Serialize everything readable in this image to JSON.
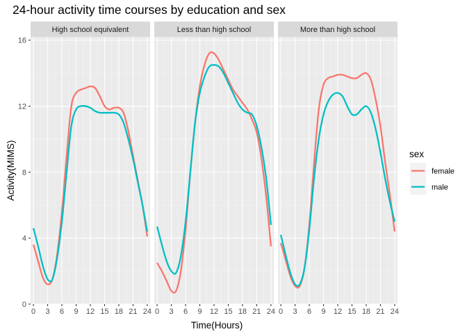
{
  "chart_data": {
    "type": "line",
    "title": "24-hour activity time courses by education and sex",
    "xlabel": "Time(Hours)",
    "ylabel": "Activity(MIMS)",
    "xlim": [
      -0.6,
      24.6
    ],
    "ylim": [
      0,
      16.2
    ],
    "x_ticks": [
      0,
      3,
      6,
      9,
      12,
      15,
      18,
      21,
      24
    ],
    "y_ticks": [
      0,
      4,
      8,
      12,
      16
    ],
    "grid": true,
    "legend": {
      "title": "sex",
      "position": "right"
    },
    "facets": [
      {
        "label": "High school equivalent",
        "series": [
          {
            "name": "female",
            "color": "#F8766D",
            "x": [
              0,
              1,
              2,
              3,
              4,
              5,
              6,
              7,
              8,
              9,
              10,
              11,
              12,
              13,
              14,
              15,
              16,
              17,
              18,
              19,
              20,
              21,
              22,
              23,
              24
            ],
            "y": [
              3.6,
              2.6,
              1.6,
              1.2,
              1.5,
              3.0,
              5.6,
              9.0,
              12.0,
              12.8,
              13.0,
              13.1,
              13.2,
              13.1,
              12.6,
              12.0,
              11.8,
              11.9,
              11.9,
              11.6,
              10.5,
              9.0,
              7.5,
              6.0,
              4.1
            ]
          },
          {
            "name": "male",
            "color": "#00BFC4",
            "x": [
              0,
              1,
              2,
              3,
              4,
              5,
              6,
              7,
              8,
              9,
              10,
              11,
              12,
              13,
              14,
              15,
              16,
              17,
              18,
              19,
              20,
              21,
              22,
              23,
              24
            ],
            "y": [
              4.6,
              3.5,
              2.3,
              1.5,
              1.5,
              2.8,
              5.0,
              8.0,
              10.8,
              11.8,
              12.0,
              12.0,
              11.9,
              11.7,
              11.6,
              11.6,
              11.6,
              11.6,
              11.5,
              11.0,
              10.0,
              8.8,
              7.4,
              6.0,
              4.4
            ]
          }
        ]
      },
      {
        "label": "Less than high school",
        "series": [
          {
            "name": "female",
            "color": "#F8766D",
            "x": [
              0,
              1,
              2,
              3,
              4,
              5,
              6,
              7,
              8,
              9,
              10,
              11,
              12,
              13,
              14,
              15,
              16,
              17,
              18,
              19,
              20,
              21,
              22,
              23,
              24
            ],
            "y": [
              2.5,
              2.0,
              1.4,
              0.8,
              0.8,
              2.0,
              4.5,
              8.0,
              11.0,
              13.2,
              14.5,
              15.2,
              15.2,
              14.8,
              14.2,
              13.6,
              13.0,
              12.6,
              12.2,
              11.8,
              11.2,
              10.4,
              8.8,
              6.5,
              3.5
            ]
          },
          {
            "name": "male",
            "color": "#00BFC4",
            "x": [
              0,
              1,
              2,
              3,
              4,
              5,
              6,
              7,
              8,
              9,
              10,
              11,
              12,
              13,
              14,
              15,
              16,
              17,
              18,
              19,
              20,
              21,
              22,
              23,
              24
            ],
            "y": [
              4.7,
              3.6,
              2.6,
              2.0,
              1.9,
              2.9,
              5.0,
              8.0,
              11.0,
              12.8,
              13.8,
              14.4,
              14.5,
              14.4,
              14.0,
              13.4,
              12.8,
              12.2,
              11.8,
              11.6,
              11.5,
              10.8,
              9.5,
              7.6,
              4.8
            ]
          }
        ]
      },
      {
        "label": "More than high school",
        "series": [
          {
            "name": "female",
            "color": "#F8766D",
            "x": [
              0,
              1,
              2,
              3,
              4,
              5,
              6,
              7,
              8,
              9,
              10,
              11,
              12,
              13,
              14,
              15,
              16,
              17,
              18,
              19,
              20,
              21,
              22,
              23,
              24
            ],
            "y": [
              3.7,
              2.7,
              1.7,
              1.1,
              1.1,
              2.2,
              4.8,
              8.5,
              11.8,
              13.3,
              13.7,
              13.8,
              13.9,
              13.9,
              13.8,
              13.7,
              13.7,
              13.9,
              14.0,
              13.6,
              12.4,
              10.8,
              8.6,
              6.6,
              4.4
            ]
          },
          {
            "name": "male",
            "color": "#00BFC4",
            "x": [
              0,
              1,
              2,
              3,
              4,
              5,
              6,
              7,
              8,
              9,
              10,
              11,
              12,
              13,
              14,
              15,
              16,
              17,
              18,
              19,
              20,
              21,
              22,
              23,
              24
            ],
            "y": [
              4.2,
              3.0,
              1.9,
              1.2,
              1.2,
              2.2,
              4.5,
              7.6,
              10.0,
              11.5,
              12.3,
              12.7,
              12.8,
              12.6,
              12.0,
              11.5,
              11.5,
              11.8,
              12.0,
              11.6,
              10.6,
              9.2,
              7.6,
              6.2,
              5.0
            ]
          }
        ]
      }
    ]
  }
}
